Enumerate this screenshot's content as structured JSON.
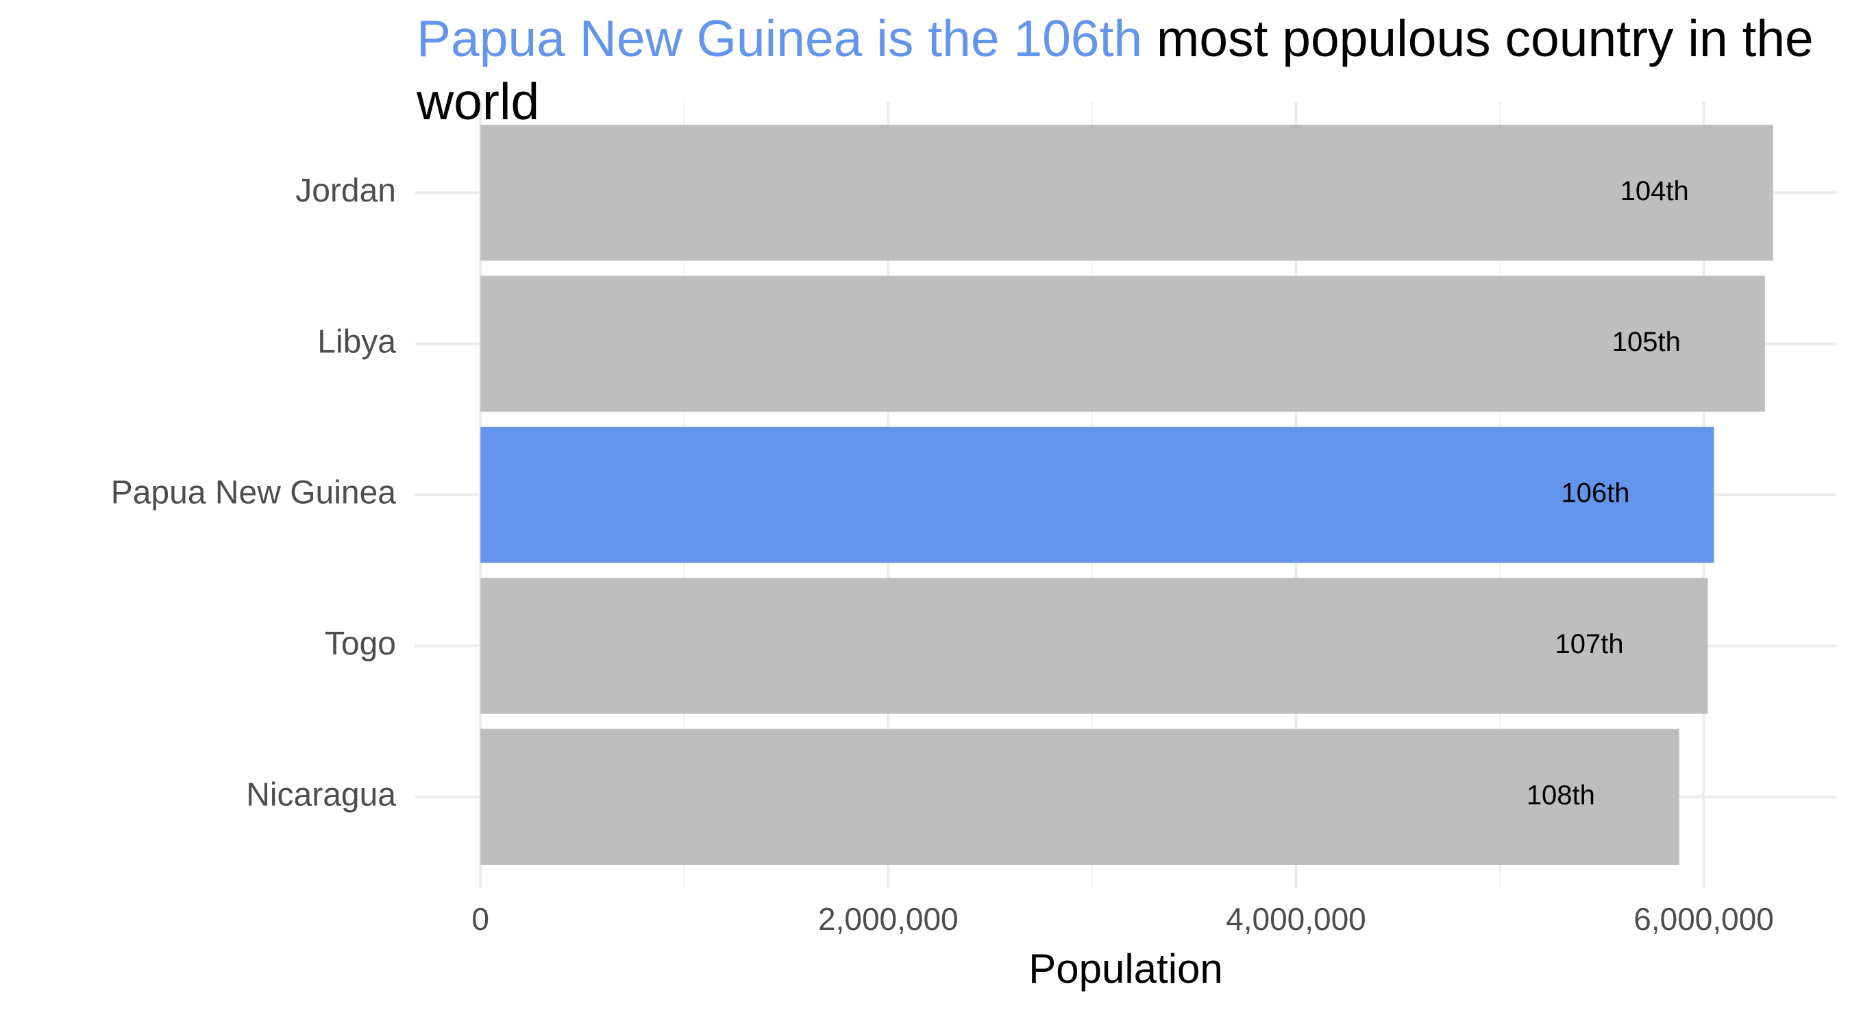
{
  "chart_data": {
    "type": "barh",
    "title": {
      "highlight": "Papua New Guinea is the 106th",
      "rest": " most populous country in the world",
      "highlight_color": "#6495ED"
    },
    "categories": [
      "Jordan",
      "Libya",
      "Papua New Guinea",
      "Togo",
      "Nicaragua"
    ],
    "values": [
      6340000,
      6300000,
      6050000,
      6020000,
      5880000
    ],
    "colors": [
      "#BEBEBE",
      "#BEBEBE",
      "#6495ED",
      "#BEBEBE",
      "#BEBEBE"
    ],
    "bar_labels": [
      "104th",
      "105th",
      "106th",
      "107th",
      "108th"
    ],
    "x_label": "Population",
    "xlim": [
      -320000,
      6650000
    ],
    "xticks": [
      0,
      {
        "value": 2000000,
        "label": "2,000,000"
      },
      {
        "value": 4000000,
        "label": "4,000,000"
      },
      {
        "value": 6000000,
        "label": "6,000,000"
      }
    ],
    "minor_xticks": [
      1000000,
      3000000,
      5000000
    ],
    "grid": true
  }
}
